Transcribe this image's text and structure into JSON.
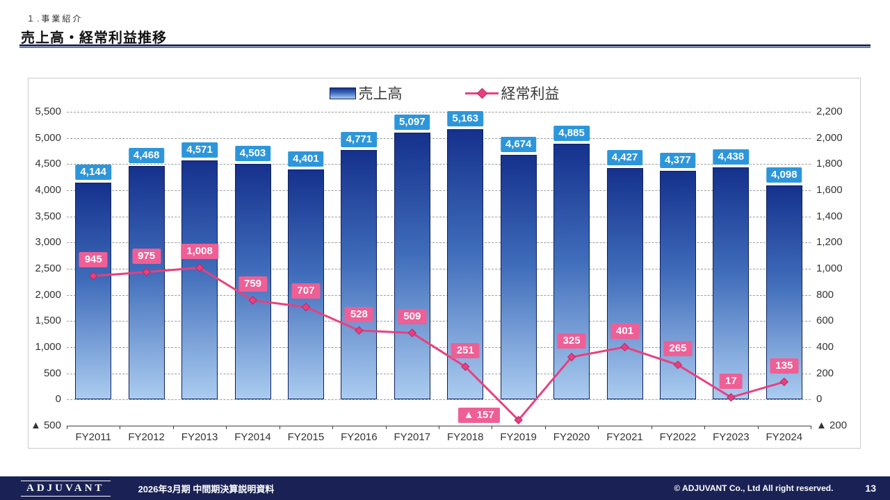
{
  "header": {
    "section_label": "１.事業紹介",
    "title": "売上高・経常利益推移"
  },
  "chart_data": {
    "type": "combo-bar-line",
    "categories": [
      "FY2011",
      "FY2012",
      "FY2013",
      "FY2014",
      "FY2015",
      "FY2016",
      "FY2017",
      "FY2018",
      "FY2019",
      "FY2020",
      "FY2021",
      "FY2022",
      "FY2023",
      "FY2024"
    ],
    "series": [
      {
        "name": "売上高",
        "type": "bar",
        "axis": "left",
        "values": [
          4144,
          4468,
          4571,
          4503,
          4401,
          4771,
          5097,
          5163,
          4674,
          4885,
          4427,
          4377,
          4438,
          4098
        ],
        "labels": [
          "4,144",
          "4,468",
          "4,571",
          "4,503",
          "4,401",
          "4,771",
          "5,097",
          "5,163",
          "4,674",
          "4,885",
          "4,427",
          "4,377",
          "4,438",
          "4,098"
        ]
      },
      {
        "name": "経常利益",
        "type": "line",
        "axis": "right",
        "values": [
          945,
          975,
          1008,
          759,
          707,
          528,
          509,
          251,
          -157,
          325,
          401,
          265,
          17,
          135
        ],
        "labels": [
          "945",
          "975",
          "1,008",
          "759",
          "707",
          "528",
          "509",
          "251",
          "▲ 157",
          "325",
          "401",
          "265",
          "17",
          "135"
        ]
      }
    ],
    "left_axis": {
      "min": -500,
      "max": 5500,
      "step": 500,
      "ticks": [
        "5,500",
        "5,000",
        "4,500",
        "4,000",
        "3,500",
        "3,000",
        "2,500",
        "2,000",
        "1,500",
        "1,000",
        "500",
        "0",
        "▲ 500"
      ]
    },
    "right_axis": {
      "min": -200,
      "max": 2200,
      "step": 200,
      "ticks": [
        "2,200",
        "2,000",
        "1,800",
        "1,600",
        "1,400",
        "1,200",
        "1,000",
        "800",
        "600",
        "400",
        "200",
        "0",
        "▲ 200"
      ]
    },
    "legend_position": "top-center",
    "grid": "dashed-horizontal",
    "colors": {
      "bar_gradient_top": "#15318d",
      "bar_gradient_bottom": "#abccf0",
      "bar_border": "#0f1f5a",
      "bar_label_bg": "#2d96db",
      "line": "#e8407f",
      "line_label_bg": "#ee5f96"
    },
    "line_label_offsets": {
      "8": [
        -57,
        -18
      ]
    }
  },
  "footer": {
    "logo": "ADJUVANT",
    "deck_title": "2026年3月期 中間期決算説明資料",
    "copyright": "© ADJUVANT Co., Ltd All right reserved.",
    "page_number": "13"
  }
}
